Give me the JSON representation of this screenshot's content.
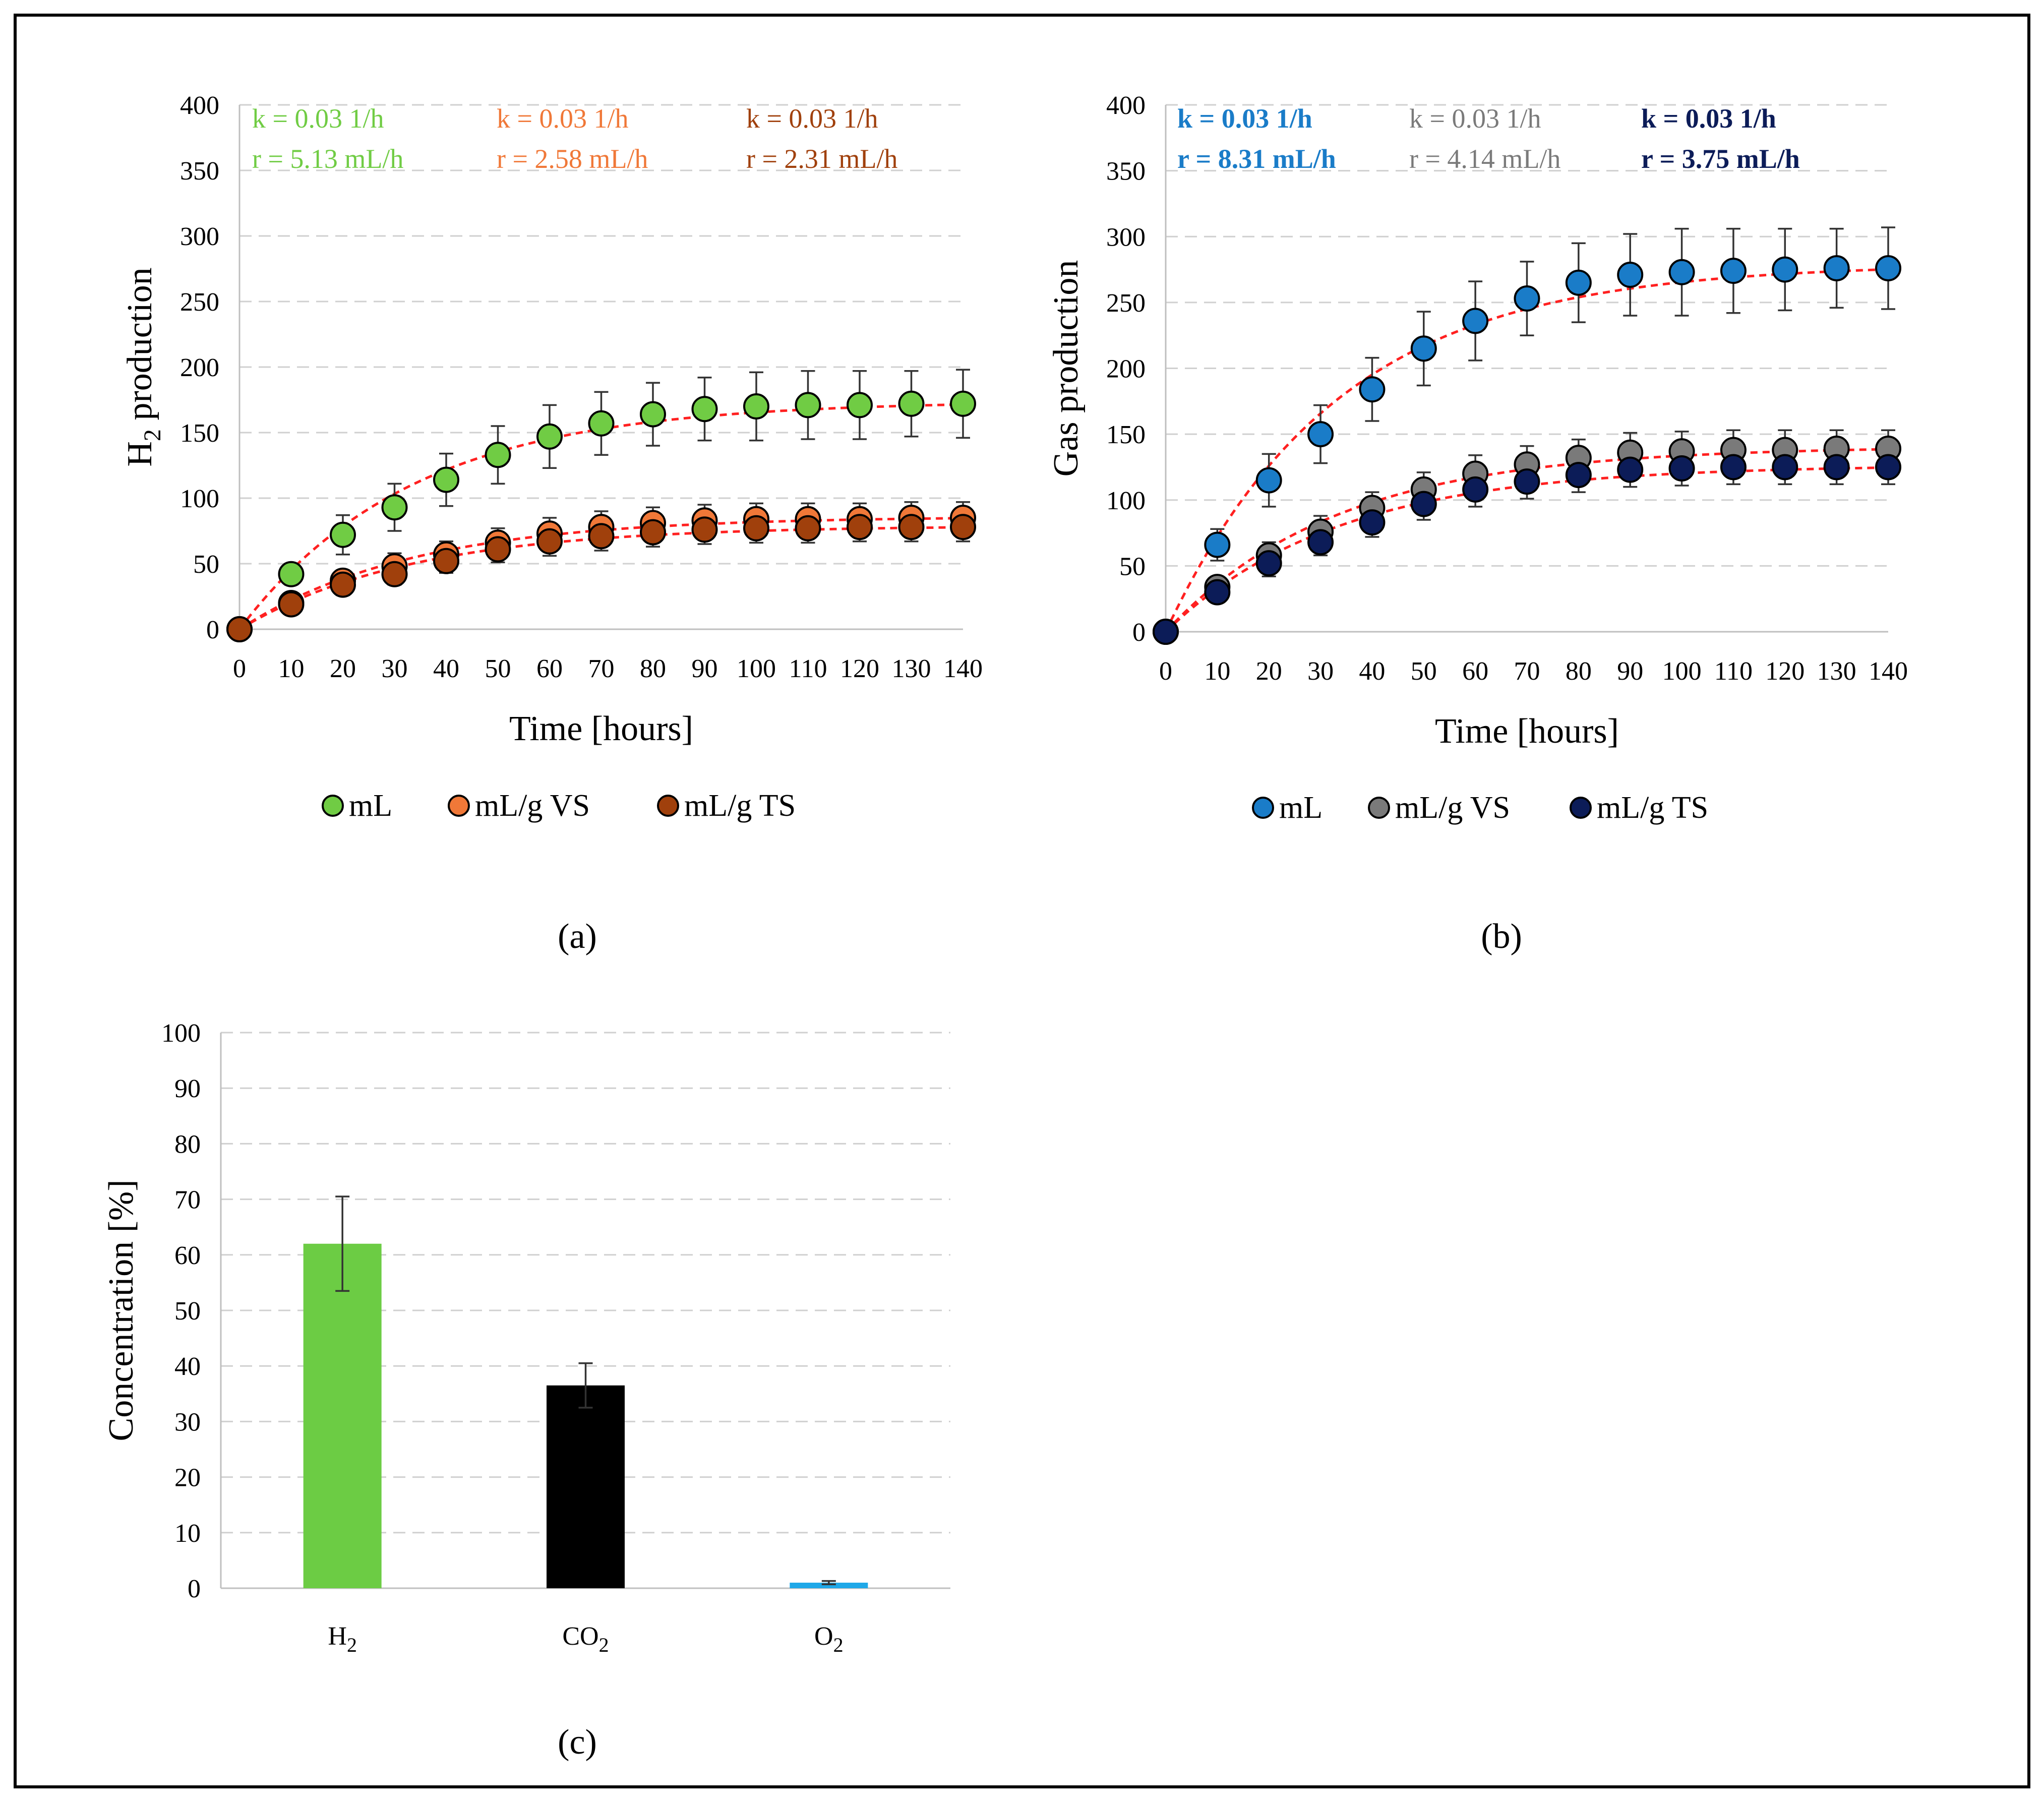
{
  "chart_data": [
    {
      "id": "a",
      "type": "scatter",
      "panel_label": "(a)",
      "xlabel": "Time [hours]",
      "ylabel": "H",
      "ylabel_sub": "2",
      "ylabel_rest": " production",
      "xlim": [
        0,
        140
      ],
      "ylim": [
        0,
        400
      ],
      "x_ticks": [
        "0",
        "10",
        "20",
        "30",
        "40",
        "50",
        "60",
        "70",
        "80",
        "90",
        "100",
        "110",
        "120",
        "130",
        "140"
      ],
      "y_ticks": [
        "0",
        "50",
        "100",
        "150",
        "200",
        "250",
        "300",
        "350",
        "400"
      ],
      "grid": true,
      "legend_position": "bottom",
      "x": [
        0,
        10,
        20,
        30,
        40,
        50,
        60,
        70,
        80,
        90,
        100,
        110,
        120,
        130,
        140
      ],
      "series": [
        {
          "name": "mL",
          "color": "#70cc44",
          "values": [
            0,
            42,
            72,
            93,
            114,
            133,
            147,
            157,
            164,
            168,
            170,
            171,
            171,
            172,
            172
          ],
          "errors": [
            0,
            8,
            15,
            18,
            20,
            22,
            24,
            24,
            24,
            24,
            26,
            26,
            26,
            25,
            26
          ],
          "annotation_k": "k = 0.03 1/h",
          "annotation_r": "r = 5.13 mL/h"
        },
        {
          "name": "mL/g VS",
          "color": "#f07838",
          "values": [
            0,
            20,
            37,
            48,
            57,
            66,
            73,
            78,
            81,
            83,
            84,
            84,
            84,
            85,
            85
          ],
          "errors": [
            0,
            5,
            8,
            10,
            10,
            11,
            12,
            12,
            12,
            12,
            12,
            12,
            12,
            12,
            12
          ],
          "annotation_k": "k = 0.03 1/h",
          "annotation_r": "r = 2.58 mL/h"
        },
        {
          "name": "mL/g TS",
          "color": "#a0400c",
          "values": [
            0,
            19,
            34,
            42,
            52,
            61,
            67,
            71,
            74,
            76,
            77,
            77,
            78,
            78,
            78
          ],
          "errors": [
            0,
            5,
            8,
            8,
            9,
            10,
            11,
            11,
            11,
            11,
            11,
            11,
            11,
            11,
            11
          ],
          "annotation_k": "k = 0.03 1/h",
          "annotation_r": "r = 2.31 mL/h"
        }
      ]
    },
    {
      "id": "b",
      "type": "scatter",
      "panel_label": "(b)",
      "xlabel": "Time [hours]",
      "ylabel": "Gas production",
      "xlim": [
        0,
        140
      ],
      "ylim": [
        0,
        400
      ],
      "x_ticks": [
        "0",
        "10",
        "20",
        "30",
        "40",
        "50",
        "60",
        "70",
        "80",
        "90",
        "100",
        "110",
        "120",
        "130",
        "140"
      ],
      "y_ticks": [
        "0",
        "50",
        "100",
        "150",
        "200",
        "250",
        "300",
        "350",
        "400"
      ],
      "grid": true,
      "legend_position": "bottom",
      "x": [
        0,
        10,
        20,
        30,
        40,
        50,
        60,
        70,
        80,
        90,
        100,
        110,
        120,
        130,
        140
      ],
      "series": [
        {
          "name": "mL",
          "color": "#1a7cc8",
          "values": [
            0,
            66,
            115,
            150,
            184,
            215,
            236,
            253,
            265,
            271,
            273,
            274,
            275,
            276,
            276
          ],
          "errors": [
            0,
            12,
            20,
            22,
            24,
            28,
            30,
            28,
            30,
            31,
            33,
            32,
            31,
            30,
            31
          ],
          "annotation_k": "k = 0.03 1/h",
          "annotation_r": "r = 8.31 mL/h"
        },
        {
          "name": "mL/g VS",
          "color": "#7a7a7a",
          "values": [
            0,
            34,
            58,
            76,
            94,
            108,
            120,
            127,
            132,
            136,
            137,
            138,
            138,
            139,
            139
          ],
          "errors": [
            0,
            6,
            10,
            12,
            12,
            13,
            14,
            14,
            14,
            15,
            15,
            15,
            15,
            14,
            14
          ],
          "annotation_k": "k = 0.03 1/h",
          "annotation_r": "r = 4.14 mL/h"
        },
        {
          "name": "mL/g TS",
          "color": "#0c1c58",
          "values": [
            0,
            30,
            52,
            68,
            83,
            97,
            108,
            114,
            119,
            123,
            124,
            125,
            125,
            125,
            125
          ],
          "errors": [
            0,
            6,
            10,
            10,
            11,
            12,
            13,
            13,
            13,
            13,
            13,
            13,
            13,
            13,
            13
          ],
          "annotation_k": "k = 0.03 1/h",
          "annotation_r": "r = 3.75 mL/h"
        }
      ]
    },
    {
      "id": "c",
      "type": "bar",
      "panel_label": "(c)",
      "ylabel": "Concentration [%]",
      "ylim": [
        0,
        100
      ],
      "y_ticks": [
        "0",
        "10",
        "20",
        "30",
        "40",
        "50",
        "60",
        "70",
        "80",
        "90",
        "100"
      ],
      "grid": true,
      "categories": [
        {
          "main": "H",
          "sub": "2"
        },
        {
          "main": "CO",
          "sub": "2"
        },
        {
          "main": "O",
          "sub": "2"
        }
      ],
      "values": [
        62,
        36.5,
        1
      ],
      "errors": [
        8.5,
        4,
        0.3
      ],
      "colors": [
        "#6ccc44",
        "#000000",
        "#1fa8e8"
      ]
    }
  ]
}
